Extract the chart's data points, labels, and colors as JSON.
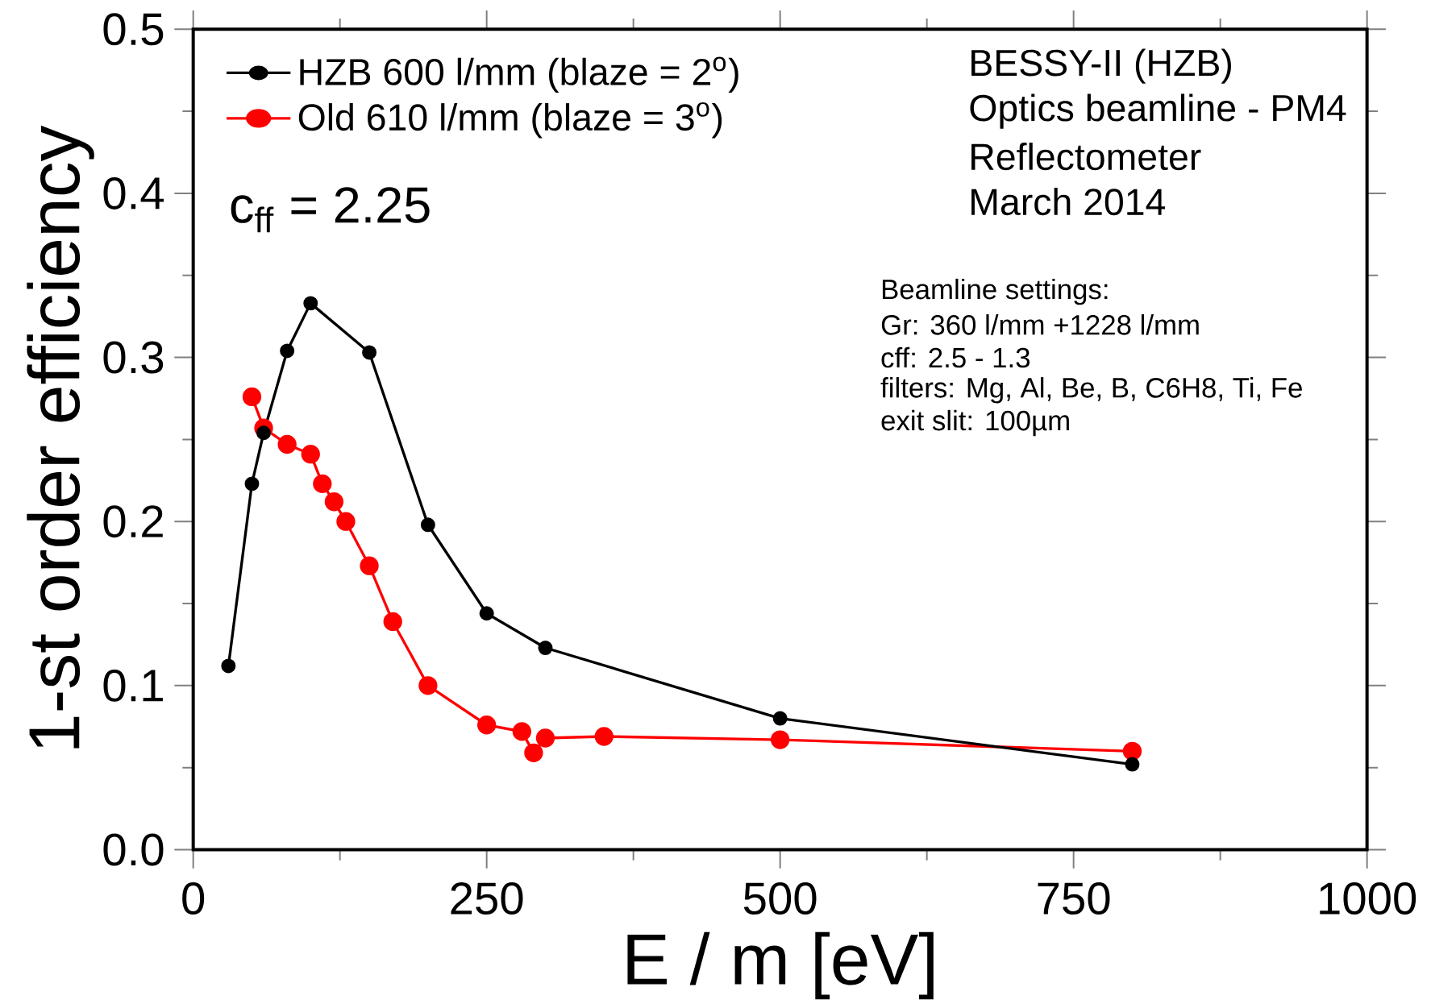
{
  "chart_data": {
    "type": "line",
    "xlabel": "E / m [eV]",
    "ylabel": "1-st order efficiency",
    "x": [
      30,
      50,
      60,
      80,
      100,
      150,
      200,
      250,
      300,
      500,
      800
    ],
    "series": [
      {
        "name": "HZB 600 l/mm (blaze = 2$^{o}$)",
        "color": "#000000",
        "values": [
          0.112,
          0.223,
          0.254,
          0.304,
          0.333,
          0.303,
          0.198,
          0.144,
          0.123,
          0.08,
          0.052
        ]
      },
      {
        "name": "Old 610 l/mm (blaze = 3$^{o}$)",
        "color": "#ff0000",
        "x": [
          50,
          60,
          80,
          100,
          110,
          120,
          130,
          150,
          170,
          200,
          250,
          280,
          290,
          300,
          350,
          500,
          800
        ],
        "values": [
          0.276,
          0.257,
          0.247,
          0.241,
          0.223,
          0.212,
          0.2,
          0.173,
          0.139,
          0.1,
          0.076,
          0.072,
          0.059,
          0.068,
          0.069,
          0.067,
          0.06
        ]
      }
    ],
    "xlim": [
      0,
      1000
    ],
    "xticks": [
      0,
      250,
      500,
      750,
      1000
    ],
    "ylim": [
      0,
      0.5
    ],
    "yticks": [
      {
        "value": 0,
        "label": "0.0"
      },
      {
        "value": 0.1,
        "label": "0.1"
      },
      {
        "value": 0.2,
        "label": "0.2"
      },
      {
        "value": 0.3,
        "label": "0.3"
      },
      {
        "value": 0.4,
        "label": "0.4"
      },
      {
        "value": 0.5,
        "label": "0.5"
      }
    ],
    "marker": "circle",
    "line_style": "solid",
    "legend": "top left",
    "grid": false,
    "annotations": [
      "BESSY-II (HZB)",
      "Optics beamline - PM4",
      "Reflectometer",
      "March 2014",
      "c$_{ff}$ = 2.25",
      "Beamline settings:",
      "Gr: 360 l/mm +1228 l/mm",
      "cff: 2.5 - 1.3",
      "filters: Mg, Al, Be, B, C6H8, Ti, Fe",
      "exit slit: 100µm"
    ]
  }
}
